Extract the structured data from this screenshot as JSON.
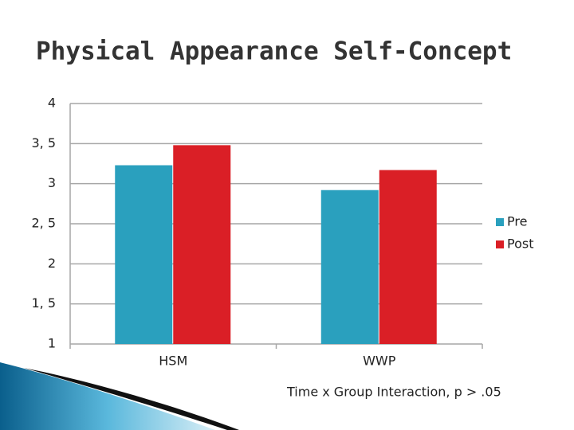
{
  "chart_data": {
    "type": "bar",
    "title": "Physical Appearance Self-Concept",
    "categories": [
      "HSM",
      "WWP"
    ],
    "series": [
      {
        "name": "Pre",
        "color": "#2aa0be",
        "values": [
          3.23,
          2.92
        ]
      },
      {
        "name": "Post",
        "color": "#da1f26",
        "values": [
          3.48,
          3.17
        ]
      }
    ],
    "ylim": [
      1,
      4
    ],
    "yticks": [
      1,
      {
        "value": 1.5,
        "label": "1, 5"
      },
      2,
      {
        "value": 2.5,
        "label": "2, 5"
      },
      3,
      {
        "value": 3.5,
        "label": "3, 5"
      },
      4
    ],
    "grid": true,
    "legend": "right",
    "annotation": "Time x Group Interaction, p > .05"
  }
}
